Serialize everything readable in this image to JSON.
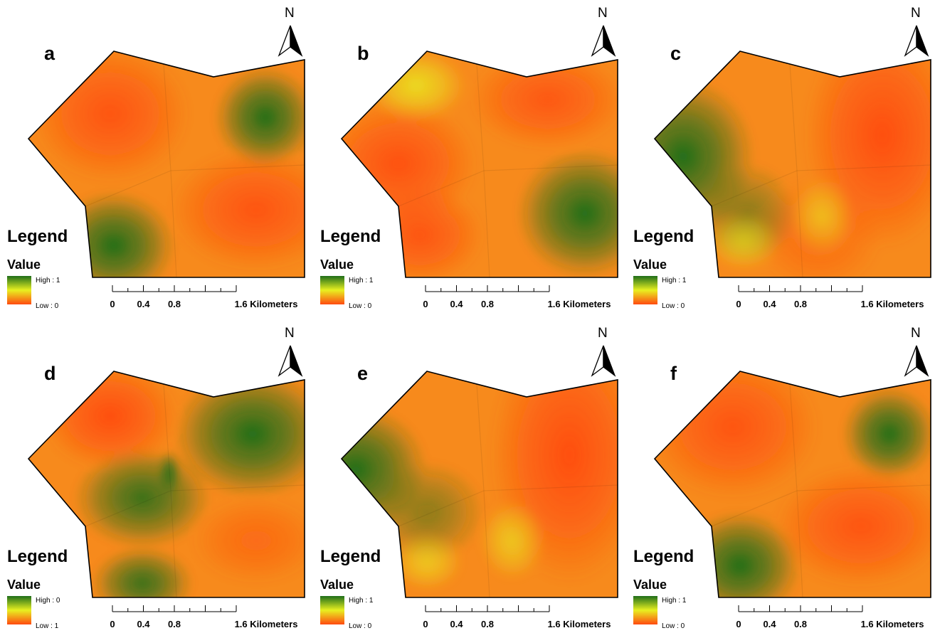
{
  "figure": {
    "panels": [
      {
        "letter": "a",
        "legend_title": "Legend",
        "value_title": "Value",
        "high_label": "High : 1",
        "low_label": "Low : 0",
        "scale_labels": [
          "0",
          "0.4",
          "0.8",
          "1.6 Kilometers"
        ],
        "north_label": "N",
        "low_zones": [
          "north-west",
          "east-centre"
        ],
        "high_zones": [
          "north-east",
          "south-west"
        ]
      },
      {
        "letter": "b",
        "legend_title": "Legend",
        "value_title": "Value",
        "high_label": "High : 1",
        "low_label": "Low : 0",
        "scale_labels": [
          "0",
          "0.4",
          "0.8",
          "1.6 Kilometers"
        ],
        "north_label": "N",
        "low_zones": [
          "west",
          "north-east",
          "south-west"
        ],
        "high_zones": [
          "south-east"
        ]
      },
      {
        "letter": "c",
        "legend_title": "Legend",
        "value_title": "Value",
        "high_label": "High : 1",
        "low_label": "Low : 0",
        "scale_labels": [
          "0",
          "0.4",
          "0.8",
          "1.6 Kilometers"
        ],
        "north_label": "N",
        "low_zones": [
          "east"
        ],
        "high_zones": [
          "west"
        ]
      },
      {
        "letter": "d",
        "legend_title": "Legend",
        "value_title": "Value",
        "high_label": "High : 0",
        "low_label": "Low : 1",
        "scale_labels": [
          "0",
          "0.4",
          "0.8",
          "1.6 Kilometers"
        ],
        "north_label": "N",
        "low_zones": [
          "north-west",
          "south-east"
        ],
        "high_zones": [
          "north-east",
          "centre",
          "south"
        ]
      },
      {
        "letter": "e",
        "legend_title": "Legend",
        "value_title": "Value",
        "high_label": "High : 1",
        "low_label": "Low : 0",
        "scale_labels": [
          "0",
          "0.4",
          "0.8",
          "1.6 Kilometers"
        ],
        "north_label": "N",
        "low_zones": [
          "east"
        ],
        "high_zones": [
          "west"
        ]
      },
      {
        "letter": "f",
        "legend_title": "Legend",
        "value_title": "Value",
        "high_label": "High : 1",
        "low_label": "Low : 0",
        "scale_labels": [
          "0",
          "0.4",
          "0.8",
          "1.6 Kilometers"
        ],
        "north_label": "N",
        "low_zones": [
          "north-west",
          "east-centre"
        ],
        "high_zones": [
          "north-east",
          "south-west"
        ]
      }
    ],
    "colors": {
      "high": "#1f6e1a",
      "mid": "#e8f020",
      "low": "#ff4a10",
      "outline": "#000000"
    }
  }
}
